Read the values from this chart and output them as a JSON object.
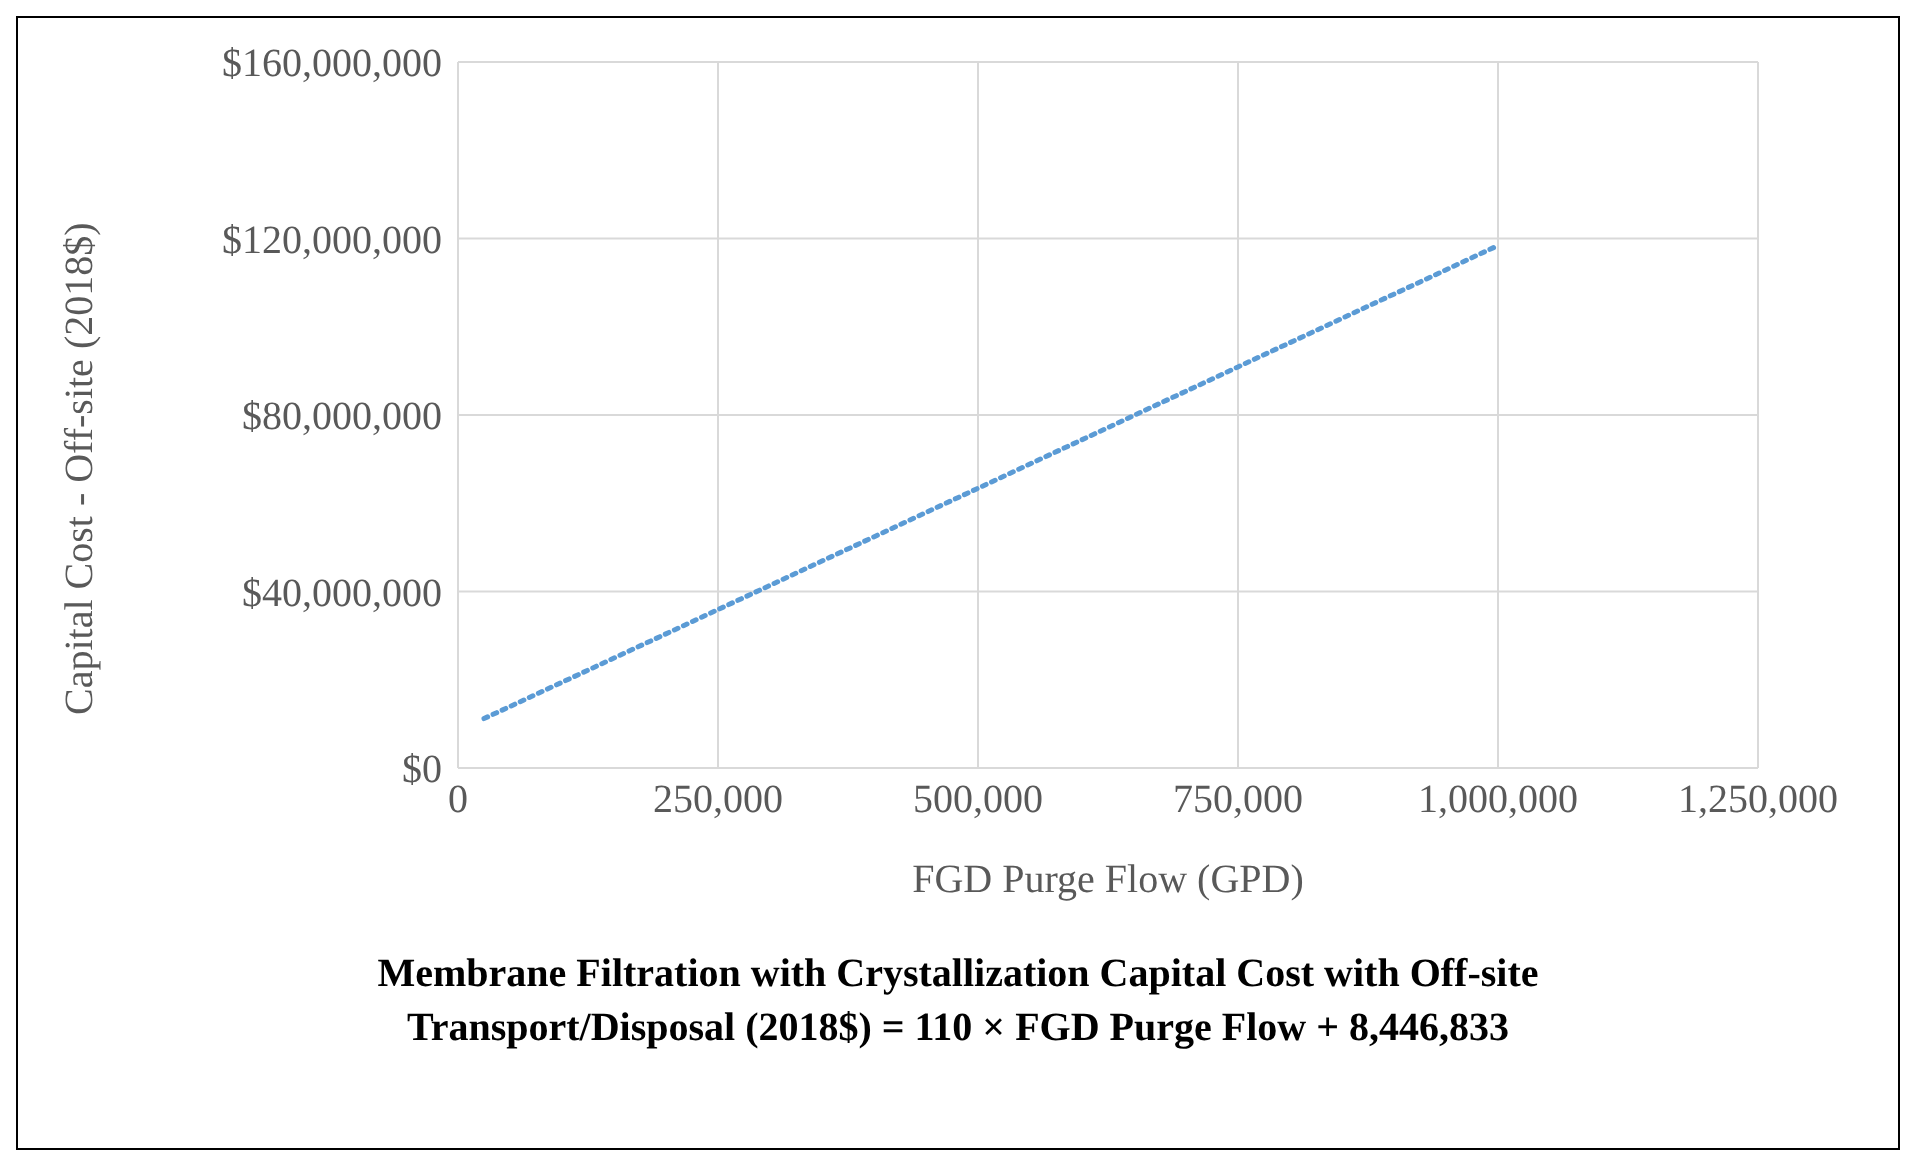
{
  "chart_data": {
    "type": "line",
    "xlabel": "FGD Purge Flow (GPD)",
    "ylabel": "Capital Cost - Off-site (2018$)",
    "x": [
      25000,
      250000,
      500000,
      750000,
      1000000
    ],
    "series": [
      {
        "color": "#5b9bd5",
        "values": [
          11200000,
          35900000,
          63400000,
          90900000,
          118400000
        ]
      }
    ],
    "xlim": [
      0,
      1250000
    ],
    "xticks": [
      {
        "value": 0,
        "label": "0"
      },
      {
        "value": 250000,
        "label": "250,000"
      },
      {
        "value": 500000,
        "label": "500,000"
      },
      {
        "value": 750000,
        "label": "750,000"
      },
      {
        "value": 1000000,
        "label": "1,000,000"
      },
      {
        "value": 1250000,
        "label": "1,250,000"
      }
    ],
    "ylim": [
      0,
      160000000
    ],
    "yticks": [
      {
        "value": 0,
        "label": "$0"
      },
      {
        "value": 40000000,
        "label": "$40,000,000"
      },
      {
        "value": 80000000,
        "label": "$80,000,000"
      },
      {
        "value": 120000000,
        "label": "$120,000,000"
      },
      {
        "value": 160000000,
        "label": "$160,000,000"
      }
    ],
    "grid": true,
    "marker": "none",
    "line_style": "dotted",
    "annotations": [
      "Membrane Filtration with Crystallization  Capital Cost with Off-site Transport/Disposal  (2018$) = 110 × FGD Purge Flow + 8,446,833"
    ]
  }
}
